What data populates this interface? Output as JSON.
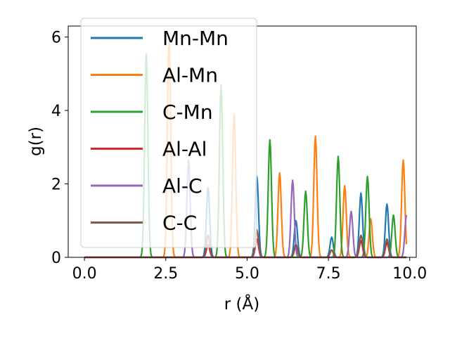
{
  "chart_data": {
    "type": "line",
    "title": "",
    "xlabel": "r (Å)",
    "ylabel": "g(r)",
    "xlim": [
      -0.5,
      10.2
    ],
    "ylim": [
      0,
      6.3
    ],
    "xticks": [
      "0.0",
      "2.5",
      "5.0",
      "7.5",
      "10.0"
    ],
    "yticks": [
      "0",
      "2",
      "4",
      "6"
    ],
    "legend_position": "upper-left",
    "grid": false,
    "series": [
      {
        "name": "Mn-Mn",
        "color": "#1f77b4",
        "peaks": [
          [
            3.8,
            1.9
          ],
          [
            5.3,
            2.2
          ],
          [
            6.5,
            1.0
          ],
          [
            7.6,
            0.55
          ],
          [
            8.5,
            1.75
          ],
          [
            9.3,
            1.45
          ]
        ]
      },
      {
        "name": "Al-Mn",
        "color": "#ff7f0e",
        "peaks": [
          [
            2.6,
            6.0
          ],
          [
            4.6,
            3.9
          ],
          [
            6.0,
            2.3
          ],
          [
            7.1,
            3.3
          ],
          [
            8.0,
            1.95
          ],
          [
            8.8,
            1.05
          ],
          [
            9.8,
            2.65
          ]
        ]
      },
      {
        "name": "C-Mn",
        "color": "#2ca02c",
        "peaks": [
          [
            1.9,
            5.55
          ],
          [
            4.2,
            4.7
          ],
          [
            5.7,
            3.2
          ],
          [
            6.8,
            1.8
          ],
          [
            7.8,
            2.75
          ],
          [
            8.7,
            2.2
          ],
          [
            9.5,
            1.15
          ]
        ]
      },
      {
        "name": "Al-Al",
        "color": "#d62728",
        "peaks": [
          [
            3.8,
            0.35
          ],
          [
            5.3,
            0.5
          ],
          [
            6.5,
            0.3
          ],
          [
            7.6,
            0.2
          ],
          [
            8.5,
            0.45
          ],
          [
            9.3,
            0.4
          ]
        ]
      },
      {
        "name": "Al-C",
        "color": "#9467bd",
        "peaks": [
          [
            3.2,
            2.65
          ],
          [
            6.4,
            2.1
          ],
          [
            8.2,
            1.25
          ],
          [
            9.9,
            1.15
          ]
        ]
      },
      {
        "name": "C-C",
        "color": "#8c564b",
        "peaks": [
          [
            3.8,
            0.6
          ],
          [
            5.3,
            0.75
          ],
          [
            6.5,
            0.35
          ],
          [
            7.6,
            0.2
          ],
          [
            8.5,
            0.6
          ],
          [
            9.3,
            0.5
          ]
        ]
      }
    ]
  }
}
